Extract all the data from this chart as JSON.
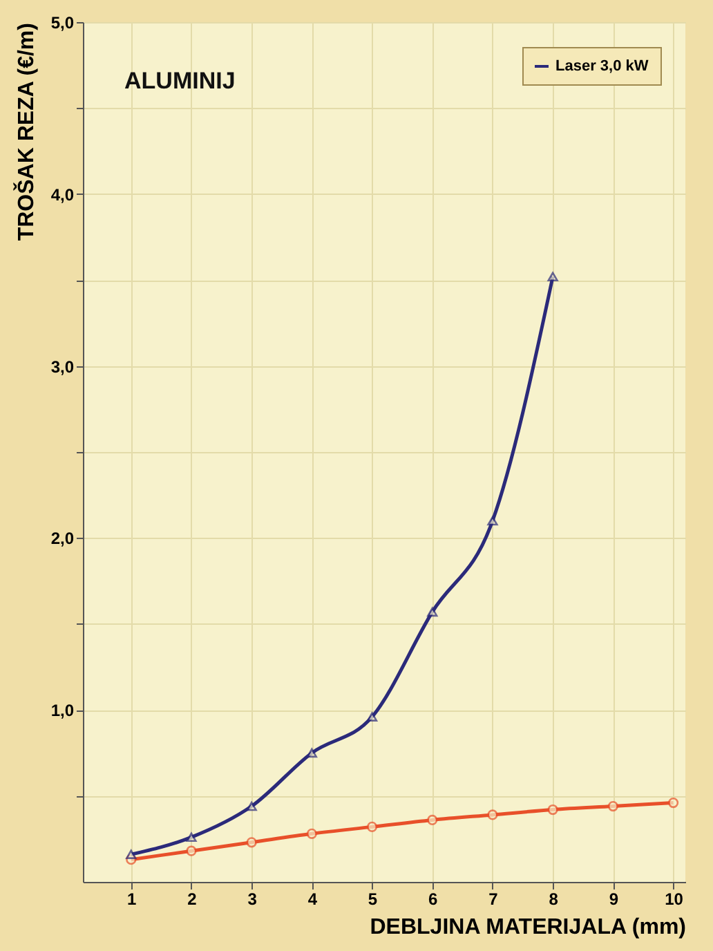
{
  "chart_data": {
    "type": "line",
    "title": "ALUMINIJ",
    "xlabel": "DEBLJINA MATERIJALA (mm)",
    "ylabel": "TROŠAK REZA (€/m)",
    "x": [
      1,
      2,
      3,
      4,
      5,
      6,
      7,
      8,
      9,
      10
    ],
    "series": [
      {
        "color": "#e8502a",
        "marker": "circle",
        "values": [
          0.13,
          0.18,
          0.23,
          0.28,
          0.32,
          0.36,
          0.39,
          0.42,
          0.44,
          0.46
        ]
      },
      {
        "name": "Laser 3,0 kW",
        "color": "#2b2a7a",
        "marker": "triangle",
        "values": [
          0.16,
          0.26,
          0.44,
          0.75,
          0.96,
          1.57,
          2.1,
          3.52,
          null,
          null
        ]
      }
    ],
    "xlim": [
      0.2,
      10.2
    ],
    "ylim": [
      0,
      5.0
    ],
    "xticks": [
      1,
      2,
      3,
      4,
      5,
      6,
      7,
      8,
      9,
      10
    ],
    "yticks": [
      {
        "value": 0.5,
        "label": null
      },
      {
        "value": 1,
        "label": "1,0"
      },
      {
        "value": 1.5,
        "label": null
      },
      {
        "value": 2,
        "label": "2,0"
      },
      {
        "value": 2.5,
        "label": null
      },
      {
        "value": 3,
        "label": "3,0"
      },
      {
        "value": 3.5,
        "label": null
      },
      {
        "value": 4,
        "label": "4,0"
      },
      {
        "value": 4.5,
        "label": null
      },
      {
        "value": 5,
        "label": "5,0"
      }
    ],
    "grid": true,
    "legend": "top right",
    "line_style": "solid"
  }
}
